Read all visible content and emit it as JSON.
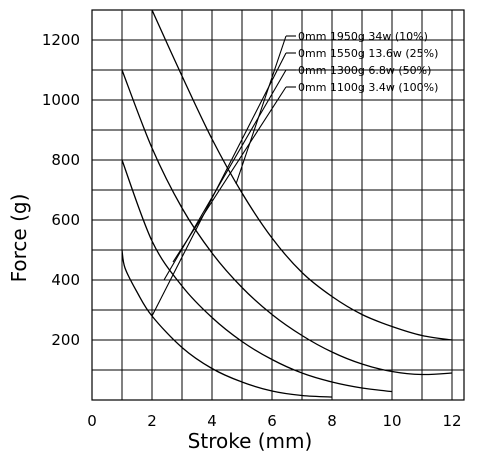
{
  "chart_data": {
    "type": "line",
    "title": "",
    "xlabel": "Stroke (mm)",
    "ylabel": "Force (g)",
    "xlim": [
      0,
      12.4
    ],
    "ylim": [
      0,
      1300
    ],
    "x_ticks": [
      0,
      2,
      4,
      6,
      8,
      10,
      12
    ],
    "y_ticks": [
      200,
      400,
      600,
      800,
      1000,
      1200
    ],
    "grid": true,
    "legend_position": "top-right",
    "series": [
      {
        "name": "0mm 1950g 34w (10%)",
        "x": [
          2.0,
          3.0,
          4.0,
          5.0,
          6.0,
          7.0,
          8.0,
          9.0,
          10.0,
          11.0,
          12.0
        ],
        "y": [
          1300,
          1080,
          870,
          690,
          540,
          425,
          345,
          285,
          245,
          215,
          200
        ]
      },
      {
        "name": "0mm 1550g 13.6w (25%)",
        "x": [
          1.0,
          2.0,
          3.0,
          4.0,
          5.0,
          6.0,
          7.0,
          8.0,
          9.0,
          10.0,
          11.0,
          12.0
        ],
        "y": [
          1100,
          840,
          640,
          490,
          375,
          285,
          215,
          160,
          120,
          95,
          85,
          90
        ]
      },
      {
        "name": "0mm 1300g 6.8w (50%)",
        "x": [
          1.0,
          2.0,
          3.0,
          4.0,
          5.0,
          6.0,
          7.0,
          8.0,
          9.0,
          10.0
        ],
        "y": [
          800,
          530,
          380,
          275,
          195,
          135,
          90,
          60,
          40,
          28
        ]
      },
      {
        "name": "0mm 1100g 3.4w (100%)",
        "x": [
          1.0,
          1.1,
          1.5,
          2.0,
          3.0,
          4.0,
          5.0,
          6.0,
          7.0,
          8.0
        ],
        "y": [
          500,
          440,
          360,
          280,
          175,
          105,
          60,
          30,
          15,
          10
        ]
      }
    ],
    "series_labels": [
      {
        "text": "0mm 1950g 34w (10%)",
        "anchor_x": 4.8,
        "anchor_y": 720
      },
      {
        "text": "0mm 1550g 13.6w (25%)",
        "anchor_x": 2.0,
        "anchor_y": 280
      },
      {
        "text": "0mm 1300g 6.8w (50%)",
        "anchor_x": 2.4,
        "anchor_y": 400
      },
      {
        "text": "0mm 1100g 3.4w (100%)",
        "anchor_x": 2.7,
        "anchor_y": 460
      }
    ]
  }
}
